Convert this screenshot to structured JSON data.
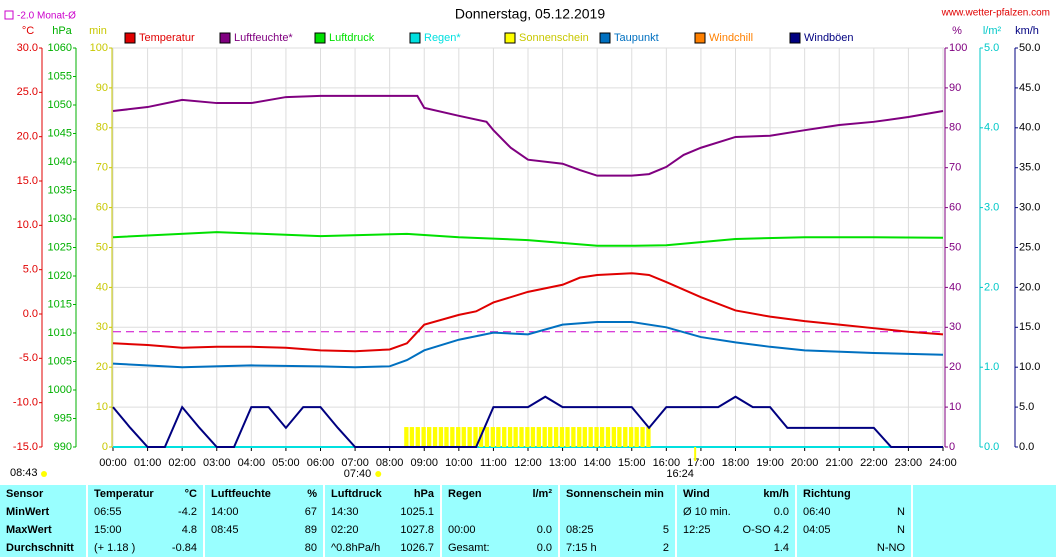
{
  "chart_data": {
    "type": "line",
    "title": "Donnerstag, 05.12.2019",
    "source": "www.wetter-pfalzen.com",
    "timestamp": "08:43",
    "reference": {
      "label": "-2.0 Monat-Ø",
      "value": -2,
      "axis": 0,
      "color": "#cc00cc"
    },
    "sunrise": {
      "label": "07:40",
      "x": 7.67
    },
    "sunset": {
      "label": "16:24",
      "x": 16.4
    },
    "xlim": [
      0,
      24
    ],
    "xticks": [
      {
        "value": 0,
        "label": "00:00"
      },
      {
        "value": 1,
        "label": "01:00"
      },
      {
        "value": 2,
        "label": "02:00"
      },
      {
        "value": 3,
        "label": "03:00"
      },
      {
        "value": 4,
        "label": "04:00"
      },
      {
        "value": 5,
        "label": "05:00"
      },
      {
        "value": 6,
        "label": "06:00"
      },
      {
        "value": 7,
        "label": "07:00"
      },
      {
        "value": 8,
        "label": "08:00"
      },
      {
        "value": 9,
        "label": "09:00"
      },
      {
        "value": 10,
        "label": "10:00"
      },
      {
        "value": 11,
        "label": "11:00"
      },
      {
        "value": 12,
        "label": "12:00"
      },
      {
        "value": 13,
        "label": "13:00"
      },
      {
        "value": 14,
        "label": "14:00"
      },
      {
        "value": 15,
        "label": "15:00"
      },
      {
        "value": 16,
        "label": "16:00"
      },
      {
        "value": 17,
        "label": "17:00"
      },
      {
        "value": 18,
        "label": "18:00"
      },
      {
        "value": 19,
        "label": "19:00"
      },
      {
        "value": 20,
        "label": "20:00"
      },
      {
        "value": 21,
        "label": "21:00"
      },
      {
        "value": 22,
        "label": "22:00"
      },
      {
        "value": 23,
        "label": "23:00"
      },
      {
        "value": 24,
        "label": "24:00"
      }
    ],
    "grid": true,
    "axes": [
      {
        "unit": "°C",
        "color": "#e00000",
        "side": "left",
        "lim": [
          -15,
          30
        ],
        "ticks": [
          {
            "value": -15,
            "label": "-15.0"
          },
          {
            "value": -10,
            "label": "-10.0"
          },
          {
            "value": -5,
            "label": "-5.0"
          },
          {
            "value": 0,
            "label": "0.0"
          },
          {
            "value": 5,
            "label": "5.0"
          },
          {
            "value": 10,
            "label": "10.0"
          },
          {
            "value": 15,
            "label": "15.0"
          },
          {
            "value": 20,
            "label": "20.0"
          },
          {
            "value": 25,
            "label": "25.0"
          },
          {
            "value": 30,
            "label": "30.0"
          }
        ]
      },
      {
        "unit": "hPa",
        "color": "#00b000",
        "side": "left",
        "lim": [
          990,
          1060
        ],
        "ticks": [
          990,
          995,
          1000,
          1005,
          1010,
          1015,
          1020,
          1025,
          1030,
          1035,
          1040,
          1045,
          1050,
          1055,
          1060
        ]
      },
      {
        "unit": "min",
        "color": "#c8c800",
        "side": "left",
        "lim": [
          0,
          100
        ],
        "ticks": [
          0,
          10,
          20,
          30,
          40,
          50,
          60,
          70,
          80,
          90,
          100
        ]
      },
      {
        "unit": "%",
        "color": "#800080",
        "side": "right",
        "lim": [
          0,
          100
        ],
        "ticks": [
          0,
          10,
          20,
          30,
          40,
          50,
          60,
          70,
          80,
          90,
          100
        ]
      },
      {
        "unit": "l/m²",
        "color": "#00c8c8",
        "side": "right",
        "lim": [
          0,
          5
        ],
        "ticks": [
          {
            "value": 0,
            "label": "0.0"
          },
          {
            "value": 1,
            "label": "1.0"
          },
          {
            "value": 2,
            "label": "2.0"
          },
          {
            "value": 3,
            "label": "3.0"
          },
          {
            "value": 4,
            "label": "4.0"
          },
          {
            "value": 5,
            "label": "5.0"
          }
        ]
      },
      {
        "unit": "km/h",
        "color": "#000080",
        "side": "right",
        "lim": [
          0,
          50
        ],
        "ticks": [
          {
            "value": 0,
            "label": "0.0"
          },
          {
            "value": 5,
            "label": "5.0"
          },
          {
            "value": 10,
            "label": "10.0"
          },
          {
            "value": 15,
            "label": "15.0"
          },
          {
            "value": 20,
            "label": "20.0"
          },
          {
            "value": 25,
            "label": "25.0"
          },
          {
            "value": 30,
            "label": "30.0"
          },
          {
            "value": 35,
            "label": "35.0"
          },
          {
            "value": 40,
            "label": "40.0"
          },
          {
            "value": 45,
            "label": "45.0"
          },
          {
            "value": 50,
            "label": "50.0"
          }
        ]
      }
    ],
    "series": [
      {
        "name": "Temperatur",
        "color": "#e00000",
        "axis": 0,
        "x": [
          0,
          1,
          2,
          3,
          4,
          5,
          6,
          7,
          8,
          8.5,
          9,
          10,
          10.5,
          11,
          12,
          13,
          13.5,
          14,
          15,
          15.5,
          16,
          17,
          18,
          19,
          20,
          21,
          22,
          23,
          24
        ],
        "values": [
          -3.3,
          -3.5,
          -3.8,
          -3.7,
          -3.7,
          -3.8,
          -4.1,
          -4.2,
          -4.0,
          -3.3,
          -1.2,
          -0.1,
          0.3,
          1.3,
          2.5,
          3.3,
          4.1,
          4.4,
          4.6,
          4.4,
          3.6,
          1.9,
          0.4,
          -0.3,
          -0.8,
          -1.2,
          -1.6,
          -2.0,
          -2.3
        ]
      },
      {
        "name": "Luftfeuchte*",
        "color": "#800080",
        "axis": 3,
        "x": [
          0,
          1,
          2,
          3,
          4,
          5,
          6,
          7,
          8,
          8.8,
          9,
          10,
          10.8,
          11,
          11.5,
          12,
          13,
          13.5,
          14,
          15,
          15.5,
          16,
          16.5,
          17,
          18,
          19,
          20,
          21,
          22,
          23,
          24
        ],
        "values": [
          84.2,
          85.2,
          87,
          86.2,
          86.2,
          87.7,
          88,
          88,
          88,
          88,
          85,
          83,
          81.5,
          79.4,
          75,
          72,
          71,
          69.4,
          68,
          68,
          68.4,
          70.2,
          73.2,
          75,
          77.7,
          78,
          79.4,
          80.7,
          81.5,
          82.7,
          84.2
        ]
      },
      {
        "name": "Luftdruck",
        "color": "#00e000",
        "axis": 1,
        "x": [
          0,
          3,
          6,
          8.5,
          10,
          12,
          14,
          15,
          16,
          18,
          20,
          22,
          24
        ],
        "values": [
          1026.8,
          1027.7,
          1027,
          1027.4,
          1026.8,
          1026.3,
          1025.3,
          1025.3,
          1025.4,
          1026.5,
          1026.8,
          1026.8,
          1026.7
        ]
      },
      {
        "name": "Regen*",
        "color": "#00e0e0",
        "axis": 4,
        "x": [
          0,
          24
        ],
        "values": [
          0,
          0
        ]
      },
      {
        "name": "Sonnenschein",
        "color": "#ffff00",
        "axis": 2,
        "kind": "bar",
        "width": 0.1667,
        "x": [
          8.42,
          8.58,
          8.75,
          8.92,
          9.08,
          9.25,
          9.42,
          9.58,
          9.75,
          9.92,
          10.08,
          10.25,
          10.42,
          10.58,
          10.75,
          10.92,
          11.08,
          11.25,
          11.42,
          11.58,
          11.75,
          11.92,
          12.08,
          12.25,
          12.42,
          12.58,
          12.75,
          12.92,
          13.08,
          13.25,
          13.42,
          13.58,
          13.75,
          13.92,
          14.08,
          14.25,
          14.42,
          14.58,
          14.75,
          14.92,
          15.08,
          15.25,
          15.42
        ],
        "values": [
          5,
          5,
          5,
          5,
          5,
          5,
          5,
          5,
          5,
          5,
          5,
          5,
          5,
          5,
          5,
          5,
          5,
          5,
          5,
          5,
          5,
          5,
          5,
          5,
          5,
          5,
          5,
          5,
          5,
          5,
          5,
          5,
          5,
          5,
          5,
          5,
          5,
          5,
          5,
          5,
          5,
          5,
          5
        ]
      },
      {
        "name": "Taupunkt",
        "color": "#0070c0",
        "axis": 0,
        "x": [
          0,
          2,
          4,
          6,
          7,
          8,
          8.5,
          9,
          10,
          11,
          12,
          13,
          14,
          15,
          16,
          17,
          18,
          19,
          20,
          22,
          24
        ],
        "values": [
          -5.6,
          -6.0,
          -5.8,
          -5.9,
          -6.0,
          -5.9,
          -5.2,
          -4.1,
          -2.9,
          -2.1,
          -2.3,
          -1.2,
          -0.9,
          -0.9,
          -1.5,
          -2.6,
          -3.2,
          -3.7,
          -4.1,
          -4.4,
          -4.6
        ]
      },
      {
        "name": "Windchill",
        "color": "#ff8000",
        "axis": 0,
        "x": [],
        "values": []
      },
      {
        "name": "Windböen",
        "color": "#000080",
        "axis": 5,
        "x": [
          0,
          0.5,
          1,
          1.5,
          2,
          2.5,
          3,
          3.5,
          4,
          4.5,
          5,
          5.5,
          6,
          6.5,
          7,
          7.5,
          8,
          8.5,
          9,
          9.5,
          10,
          10.5,
          11,
          11.5,
          12,
          12.5,
          13,
          13.5,
          14,
          14.5,
          15,
          15.5,
          16,
          16.5,
          17,
          17.5,
          18,
          18.5,
          19,
          19.5,
          20,
          20.5,
          21,
          21.5,
          22,
          22.5,
          23,
          23.5,
          24
        ],
        "values": [
          5,
          2.4,
          0,
          0,
          5,
          2.4,
          0,
          0,
          5,
          5,
          2.4,
          5,
          5,
          2.4,
          0,
          0,
          0,
          0,
          0,
          0,
          0,
          0,
          5,
          5,
          5,
          6.3,
          5,
          5,
          5,
          5,
          5,
          2.4,
          5,
          5,
          5,
          5,
          6.3,
          5,
          5,
          2.4,
          2.4,
          2.4,
          2.4,
          2.4,
          2.4,
          0,
          0,
          0,
          0
        ]
      }
    ]
  },
  "table": {
    "header": [
      {
        "left": "Sensor"
      },
      {
        "left": "Temperatur",
        "right": "°C"
      },
      {
        "left": "Luftfeuchte",
        "right": "%"
      },
      {
        "left": "Luftdruck",
        "right": "hPa"
      },
      {
        "left": "Regen",
        "right": "l/m²"
      },
      {
        "left": "Sonnenschein min"
      },
      {
        "left": "Wind",
        "right": "km/h"
      },
      {
        "left": "Richtung"
      }
    ],
    "rows": [
      [
        {
          "left": "MinWert"
        },
        {
          "left": "06:55",
          "right": "-4.2"
        },
        {
          "left": "14:00",
          "right": "67"
        },
        {
          "left": "14:30",
          "right": "1025.1"
        },
        {},
        {},
        {
          "left": "Ø 10 min.",
          "right": "0.0"
        },
        {
          "left": "06:40",
          "right": "N"
        }
      ],
      [
        {
          "left": "MaxWert"
        },
        {
          "left": "15:00",
          "right": "4.8"
        },
        {
          "left": "08:45",
          "right": "89"
        },
        {
          "left": "02:20",
          "right": "1027.8"
        },
        {
          "left": "00:00",
          "right": "0.0"
        },
        {
          "left": "08:25",
          "right": "5"
        },
        {
          "left": "12:25",
          "right": "O-SO 4.2"
        },
        {
          "left": "04:05",
          "right": "N"
        }
      ],
      [
        {
          "left": "Durchschnitt"
        },
        {
          "left": "(+ 1.18 )",
          "right": "-0.84"
        },
        {
          "right": "80"
        },
        {
          "left": "^0.8hPa/h",
          "right": "1026.7"
        },
        {
          "left": "Gesamt:",
          "right": "0.0"
        },
        {
          "left": "7:15 h",
          "right": "2"
        },
        {
          "right": "1.4"
        },
        {
          "right": "N-NO"
        }
      ]
    ]
  }
}
